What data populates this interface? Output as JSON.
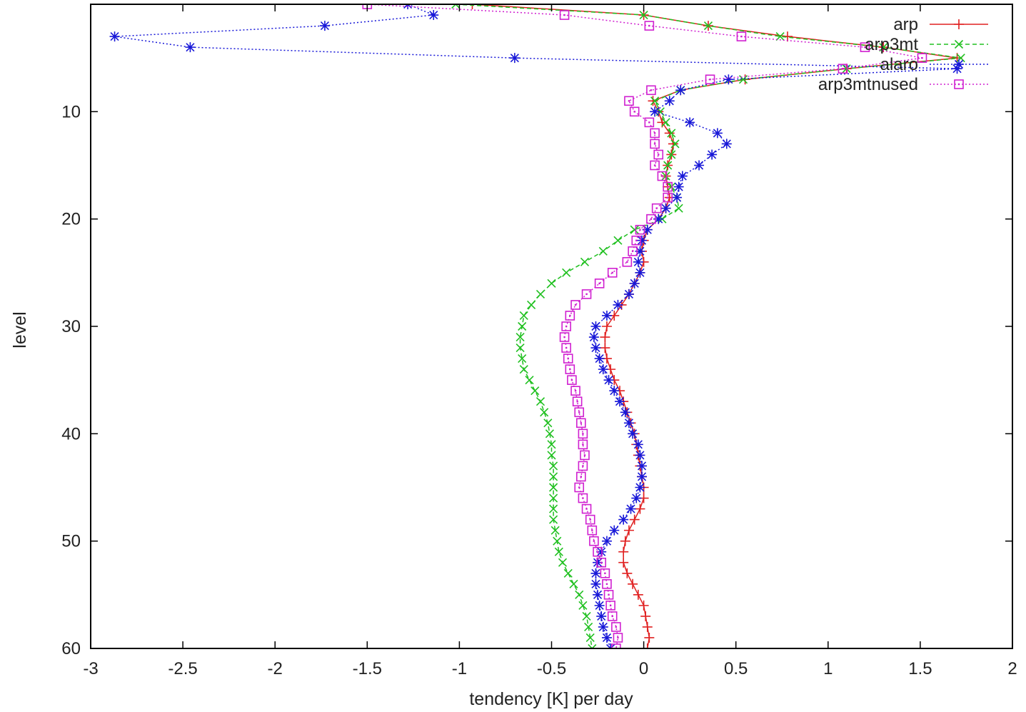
{
  "chart_data": {
    "type": "line",
    "title": "",
    "xlabel": "tendency [K] per day",
    "ylabel": "level",
    "xlim": [
      -3,
      2
    ],
    "ylim": [
      0,
      60
    ],
    "y_inverted": true,
    "xticks": [
      -3,
      -2.5,
      -2,
      -1.5,
      -1,
      -0.5,
      0,
      0.5,
      1,
      1.5,
      2
    ],
    "yticks": [
      10,
      20,
      30,
      40,
      50,
      60
    ],
    "grid": false,
    "legend_position": "top-right",
    "series": [
      {
        "name": "arp",
        "color": "#e02020",
        "line_style": "solid",
        "marker": "plus",
        "x": [
          -0.93,
          0.0,
          0.35,
          0.78,
          1.3,
          1.7,
          1.1,
          0.55,
          0.2,
          0.05,
          0.08,
          0.1,
          0.14,
          0.16,
          0.15,
          0.13,
          0.12,
          0.13,
          0.14,
          0.12,
          0.08,
          0.02,
          0.0,
          -0.01,
          0.0,
          -0.02,
          -0.05,
          -0.08,
          -0.12,
          -0.16,
          -0.2,
          -0.21,
          -0.21,
          -0.2,
          -0.18,
          -0.16,
          -0.13,
          -0.11,
          -0.09,
          -0.07,
          -0.05,
          -0.04,
          -0.03,
          -0.02,
          -0.01,
          0.0,
          0.0,
          -0.02,
          -0.05,
          -0.08,
          -0.1,
          -0.11,
          -0.11,
          -0.09,
          -0.06,
          -0.03,
          0.0,
          0.01,
          0.02,
          0.03,
          0.02
        ],
        "y": [
          0,
          1,
          2,
          3,
          4,
          5,
          6,
          7,
          8,
          9,
          10,
          11,
          12,
          13,
          14,
          15,
          16,
          17,
          18,
          19,
          20,
          21,
          22,
          23,
          24,
          25,
          26,
          27,
          28,
          29,
          30,
          31,
          32,
          33,
          34,
          35,
          36,
          37,
          38,
          39,
          40,
          41,
          42,
          43,
          44,
          45,
          46,
          47,
          48,
          49,
          50,
          51,
          52,
          53,
          54,
          55,
          56,
          57,
          58,
          59,
          60
        ]
      },
      {
        "name": "arp3mt",
        "color": "#20c020",
        "line_style": "dashed",
        "marker": "x",
        "x": [
          -1.02,
          0.0,
          0.35,
          0.74,
          1.3,
          1.72,
          1.1,
          0.54,
          0.2,
          0.06,
          0.09,
          0.12,
          0.15,
          0.17,
          0.15,
          0.13,
          0.12,
          0.15,
          0.18,
          0.19,
          0.1,
          -0.05,
          -0.14,
          -0.22,
          -0.32,
          -0.42,
          -0.5,
          -0.56,
          -0.61,
          -0.65,
          -0.66,
          -0.67,
          -0.67,
          -0.66,
          -0.65,
          -0.62,
          -0.59,
          -0.56,
          -0.54,
          -0.52,
          -0.51,
          -0.5,
          -0.5,
          -0.49,
          -0.49,
          -0.49,
          -0.49,
          -0.49,
          -0.49,
          -0.48,
          -0.47,
          -0.46,
          -0.44,
          -0.41,
          -0.38,
          -0.35,
          -0.33,
          -0.31,
          -0.3,
          -0.29,
          -0.28
        ],
        "y": [
          0,
          1,
          2,
          3,
          4,
          5,
          6,
          7,
          8,
          9,
          10,
          11,
          12,
          13,
          14,
          15,
          16,
          17,
          18,
          19,
          20,
          21,
          22,
          23,
          24,
          25,
          26,
          27,
          28,
          29,
          30,
          31,
          32,
          33,
          34,
          35,
          36,
          37,
          38,
          39,
          40,
          41,
          42,
          43,
          44,
          45,
          46,
          47,
          48,
          49,
          50,
          51,
          52,
          53,
          54,
          55,
          56,
          57,
          58,
          59,
          60
        ]
      },
      {
        "name": "alaro",
        "color": "#1818d8",
        "line_style": "dotted",
        "marker": "star",
        "x": [
          -1.28,
          -1.14,
          -1.73,
          -2.87,
          -2.46,
          -0.7,
          1.7,
          0.46,
          0.2,
          0.14,
          0.06,
          0.25,
          0.4,
          0.45,
          0.37,
          0.3,
          0.21,
          0.19,
          0.18,
          0.12,
          0.08,
          0.02,
          -0.01,
          -0.02,
          -0.03,
          -0.02,
          -0.05,
          -0.08,
          -0.14,
          -0.2,
          -0.26,
          -0.27,
          -0.26,
          -0.24,
          -0.22,
          -0.19,
          -0.16,
          -0.13,
          -0.1,
          -0.08,
          -0.06,
          -0.03,
          -0.02,
          -0.01,
          -0.01,
          -0.02,
          -0.04,
          -0.07,
          -0.11,
          -0.16,
          -0.2,
          -0.23,
          -0.25,
          -0.26,
          -0.26,
          -0.25,
          -0.24,
          -0.23,
          -0.22,
          -0.2,
          -0.18
        ],
        "y": [
          0,
          1,
          2,
          3,
          4,
          5,
          6,
          7,
          8,
          9,
          10,
          11,
          12,
          13,
          14,
          15,
          16,
          17,
          18,
          19,
          20,
          21,
          22,
          23,
          24,
          25,
          26,
          27,
          28,
          29,
          30,
          31,
          32,
          33,
          34,
          35,
          36,
          37,
          38,
          39,
          40,
          41,
          42,
          43,
          44,
          45,
          46,
          47,
          48,
          49,
          50,
          51,
          52,
          53,
          54,
          55,
          56,
          57,
          58,
          59,
          60
        ]
      },
      {
        "name": "arp3mtnused",
        "color": "#d020d0",
        "line_style": "dotted",
        "marker": "square",
        "x": [
          -1.5,
          -0.43,
          0.03,
          0.53,
          1.2,
          1.51,
          1.08,
          0.36,
          0.04,
          -0.08,
          -0.05,
          0.03,
          0.06,
          0.06,
          0.08,
          0.06,
          0.1,
          0.13,
          0.13,
          0.07,
          0.04,
          -0.02,
          -0.04,
          -0.06,
          -0.09,
          -0.17,
          -0.24,
          -0.31,
          -0.37,
          -0.4,
          -0.42,
          -0.43,
          -0.42,
          -0.41,
          -0.4,
          -0.39,
          -0.37,
          -0.36,
          -0.35,
          -0.34,
          -0.33,
          -0.33,
          -0.32,
          -0.33,
          -0.34,
          -0.35,
          -0.33,
          -0.31,
          -0.29,
          -0.28,
          -0.27,
          -0.25,
          -0.23,
          -0.21,
          -0.2,
          -0.19,
          -0.18,
          -0.17,
          -0.15,
          -0.14,
          -0.15
        ],
        "y": [
          0,
          1,
          2,
          3,
          4,
          5,
          6,
          7,
          8,
          9,
          10,
          11,
          12,
          13,
          14,
          15,
          16,
          17,
          18,
          19,
          20,
          21,
          22,
          23,
          24,
          25,
          26,
          27,
          28,
          29,
          30,
          31,
          32,
          33,
          34,
          35,
          36,
          37,
          38,
          39,
          40,
          41,
          42,
          43,
          44,
          45,
          46,
          47,
          48,
          49,
          50,
          51,
          52,
          53,
          54,
          55,
          56,
          57,
          58,
          59,
          60
        ]
      }
    ]
  }
}
